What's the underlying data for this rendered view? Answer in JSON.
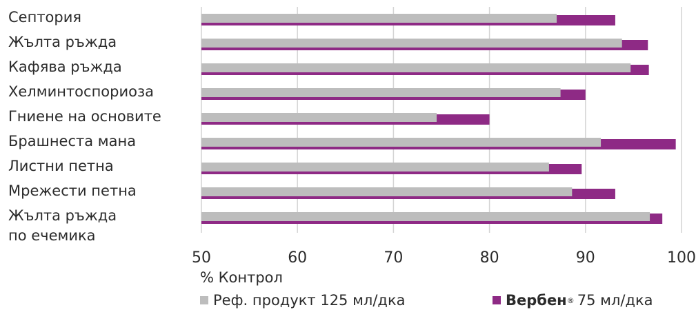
{
  "colors": {
    "reference": "#bdbdbd",
    "verben": "#8e2a85",
    "grid": "#d4d4d4",
    "text": "#2b2b2b"
  },
  "chart_data": {
    "type": "bar",
    "orientation": "horizontal",
    "categories": [
      [
        "Септория"
      ],
      [
        "Жълта ръжда"
      ],
      [
        "Кафява ръжда"
      ],
      [
        "Хелминтоспориоза"
      ],
      [
        "Гниене на основите"
      ],
      [
        "Брашнеста мана"
      ],
      [
        "Листни петна"
      ],
      [
        "Мрежести петна"
      ],
      [
        "Жълта ръжда",
        "по ечемика"
      ]
    ],
    "series": [
      {
        "name": "Реф. продукт 125 мл/дка",
        "values": [
          87,
          93.8,
          94.7,
          87.4,
          74.5,
          91.6,
          86.2,
          88.6,
          96.7
        ]
      },
      {
        "name": "Вербен",
        "name_sup": "®",
        "name_rest": "75 мл/дка",
        "values": [
          93.1,
          96.5,
          96.6,
          90,
          80,
          99.4,
          89.6,
          93.1,
          98
        ]
      }
    ],
    "xlabel": "% Контрол",
    "xticks": [
      "50",
      "60",
      "70",
      "80",
      "90",
      "100"
    ],
    "xlim": [
      50,
      100
    ],
    "grid": "vertical",
    "legend": "bottom"
  }
}
